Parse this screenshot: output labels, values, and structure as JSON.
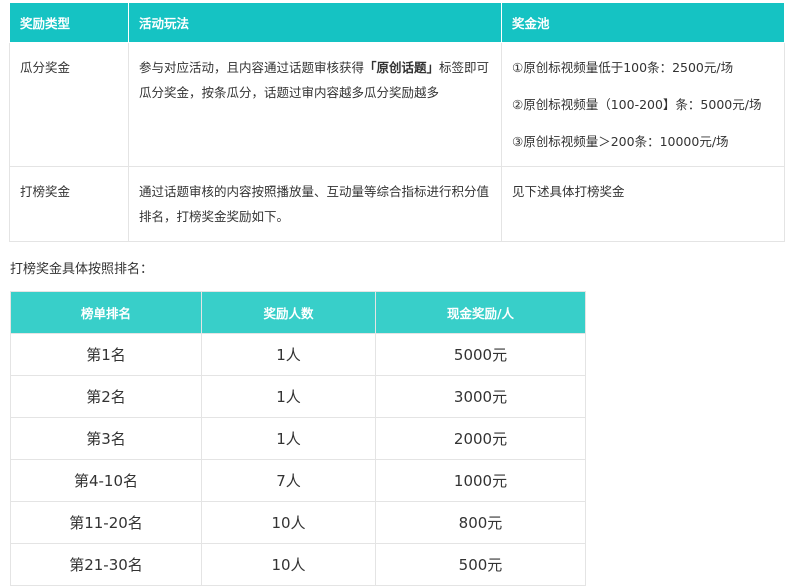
{
  "reward_table": {
    "headers": [
      "奖励类型",
      "活动玩法",
      "奖金池"
    ],
    "rows": [
      {
        "type": "瓜分奖金",
        "rule_pre": "参与对应活动，且内容通过话题审核获得",
        "rule_bold": "「原创话题」",
        "rule_post": "标签即可瓜分奖金，按条瓜分，话题过审内容越多瓜分奖励越多",
        "pool": [
          "①原创标视频量低于100条：2500元/场",
          "②原创标视频量（100-200】条：5000元/场",
          "③原创标视频量＞200条：10000元/场"
        ]
      },
      {
        "type": "打榜奖金",
        "rule": "通过话题审核的内容按照播放量、互动量等综合指标进行积分值排名，打榜奖金奖励如下。",
        "pool": "见下述具体打榜奖金"
      }
    ]
  },
  "ranking_label": "打榜奖金具体按照排名：",
  "ranking_table": {
    "headers": [
      "榜单排名",
      "奖励人数",
      "现金奖励/人"
    ],
    "rows": [
      [
        "第1名",
        "1人",
        "5000元"
      ],
      [
        "第2名",
        "1人",
        "3000元"
      ],
      [
        "第3名",
        "1人",
        "2000元"
      ],
      [
        "第4-10名",
        "7人",
        "1000元"
      ],
      [
        "第11-20名",
        "10人",
        "800元"
      ],
      [
        "第21-30名",
        "10人",
        "500元"
      ]
    ]
  },
  "colors": {
    "header1": "#15c3c3",
    "header2": "#38cfc9"
  }
}
